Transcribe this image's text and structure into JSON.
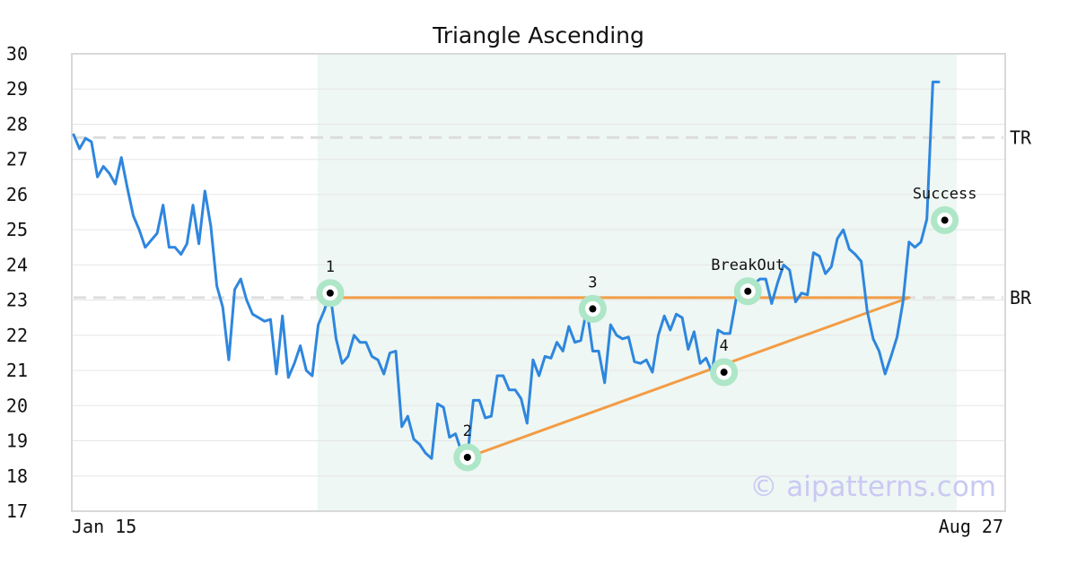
{
  "chart_data": {
    "type": "line",
    "title": "Triangle Ascending",
    "watermark": "© aipatterns.com",
    "ylim": [
      17,
      30
    ],
    "y_ticks": [
      "17",
      "18",
      "19",
      "20",
      "21",
      "22",
      "23",
      "24",
      "25",
      "26",
      "27",
      "28",
      "29",
      "30"
    ],
    "x_labels": [
      "Jan 15",
      "Aug 27"
    ],
    "grid": true,
    "colors": {
      "price": "#2e86de",
      "triangle": "#f39c45",
      "marker_halo": "#aee6c8",
      "zone": "#eef7f3",
      "ref_line": "#dddddd",
      "watermark": "#c9c9f4"
    },
    "series": [
      {
        "values": [
          27.7,
          27.3,
          27.6,
          27.5,
          26.5,
          26.8,
          26.6,
          26.3,
          27.05,
          26.2,
          25.4,
          25.0,
          24.5,
          24.7,
          24.9,
          25.7,
          24.5,
          24.5,
          24.3,
          24.6,
          25.7,
          24.6,
          26.1,
          25.1,
          23.4,
          22.8,
          21.3,
          23.3,
          23.6,
          23.0,
          22.6,
          22.5,
          22.4,
          22.45,
          20.9,
          22.55,
          20.8,
          21.2,
          21.7,
          21.0,
          20.85,
          22.3,
          22.7,
          23.2,
          21.9,
          21.2,
          21.4,
          22.0,
          21.8,
          21.8,
          21.4,
          21.3,
          20.9,
          21.5,
          21.55,
          19.4,
          19.7,
          19.05,
          18.9,
          18.65,
          18.5,
          20.05,
          19.95,
          19.1,
          19.2,
          18.7,
          18.55,
          20.15,
          20.15,
          19.65,
          19.7,
          20.85,
          20.85,
          20.45,
          20.45,
          20.2,
          19.5,
          21.3,
          20.85,
          21.4,
          21.35,
          21.8,
          21.55,
          22.25,
          21.8,
          21.85,
          22.75,
          21.55,
          21.55,
          20.65,
          22.3,
          22.0,
          21.9,
          21.95,
          21.25,
          21.2,
          21.3,
          20.95,
          22.0,
          22.55,
          22.15,
          22.6,
          22.5,
          21.6,
          22.1,
          21.2,
          21.35,
          20.95,
          22.15,
          22.05,
          22.05,
          23.0,
          23.25,
          23.35,
          23.45,
          23.6,
          23.6,
          22.9,
          23.5,
          24.0,
          23.85,
          22.95,
          23.2,
          23.15,
          24.35,
          24.25,
          23.75,
          23.95,
          24.75,
          25.0,
          24.45,
          24.3,
          24.1,
          22.7,
          21.9,
          21.55,
          20.9,
          21.4,
          21.95,
          22.95,
          24.65,
          24.5,
          24.65,
          25.3,
          29.2,
          29.2
        ]
      }
    ],
    "pattern_zone": {
      "start_index": 43,
      "end_index": 148
    },
    "reference_lines": [
      {
        "label": "TR",
        "y": 27.62
      },
      {
        "label": "BR",
        "y": 23.07
      }
    ],
    "triangle": {
      "resistance": {
        "from": [
          43,
          23.07
        ],
        "to": [
          140,
          23.07
        ]
      },
      "support": {
        "from": [
          66,
          18.53
        ],
        "to": [
          140,
          23.07
        ]
      }
    },
    "markers": [
      {
        "label": "1",
        "index": 43,
        "y": 23.2
      },
      {
        "label": "2",
        "index": 66,
        "y": 18.53
      },
      {
        "label": "3",
        "index": 87,
        "y": 22.75
      },
      {
        "label": "4",
        "index": 109,
        "y": 20.95
      },
      {
        "label": "BreakOut",
        "index": 113,
        "y": 23.25
      },
      {
        "label": "Success",
        "index": 146,
        "y": 25.27
      }
    ]
  }
}
